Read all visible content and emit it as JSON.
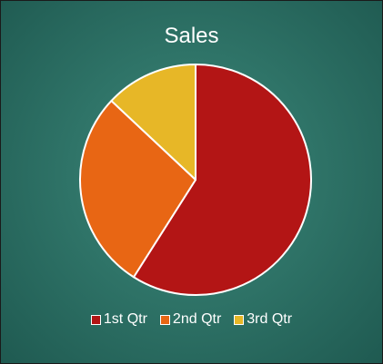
{
  "chart_data": {
    "type": "pie",
    "title": "Sales",
    "categories": [
      "1st Qtr",
      "2nd Qtr",
      "3rd Qtr"
    ],
    "values": [
      59,
      28,
      13
    ],
    "colors": [
      "#b31515",
      "#e86614",
      "#e7b727"
    ],
    "slice_border_color": "#ffffff",
    "legend": {
      "position": "bottom",
      "entries": [
        "1st Qtr",
        "2nd Qtr",
        "3rd Qtr"
      ]
    }
  }
}
